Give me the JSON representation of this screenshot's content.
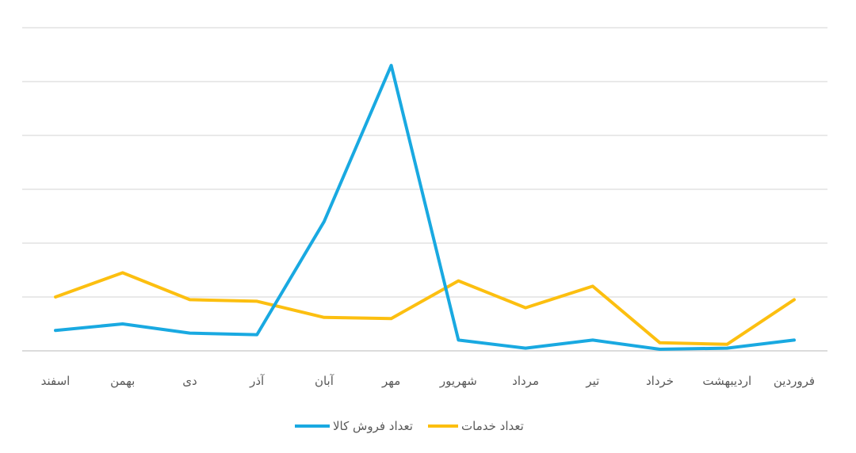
{
  "chart_data": {
    "type": "line",
    "title": "",
    "xlabel": "",
    "ylabel": "",
    "categories": [
      "فروردین",
      "اردیبهشت",
      "خرداد",
      "تیر",
      "مرداد",
      "شهریور",
      "مهر",
      "آبان",
      "آذر",
      "دی",
      "بهمن",
      "اسفند"
    ],
    "x_direction": "right-to-left",
    "ylim": [
      0,
      60
    ],
    "grid": true,
    "legend_position": "bottom",
    "series": [
      {
        "name": "تعداد فروش کالا",
        "color": "#19A9E1",
        "values": [
          2,
          0.5,
          0.3,
          2,
          0.5,
          2,
          53,
          24,
          3,
          3.3,
          5,
          3.8
        ]
      },
      {
        "name": "تعداد خدمات",
        "color": "#FCBF10",
        "values": [
          9.5,
          1.2,
          1.5,
          12,
          8,
          13,
          6,
          6.2,
          9.2,
          9.5,
          14.5,
          10
        ]
      }
    ]
  }
}
